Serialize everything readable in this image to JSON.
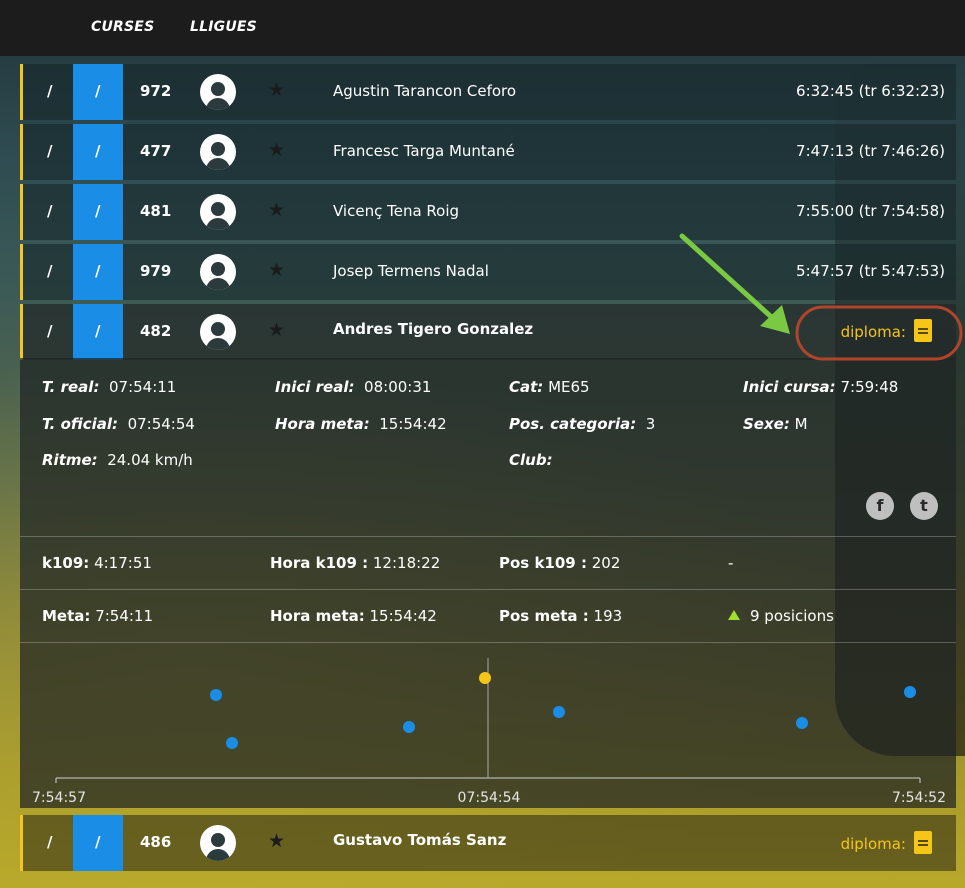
{
  "nav": {
    "curses": "CURSES",
    "lligues": "LLIGUES"
  },
  "rows": [
    {
      "c1": "/",
      "c2": "/",
      "dorsal": "972",
      "name": "Agustin Tarancon Ceforo",
      "time": "6:32:45 (tr 6:32:23)"
    },
    {
      "c1": "/",
      "c2": "/",
      "dorsal": "477",
      "name": "Francesc Targa Muntané",
      "time": "7:47:13 (tr 7:46:26)"
    },
    {
      "c1": "/",
      "c2": "/",
      "dorsal": "481",
      "name": "Vicenç Tena Roig",
      "time": "7:55:00 (tr 7:54:58)"
    },
    {
      "c1": "/",
      "c2": "/",
      "dorsal": "979",
      "name": "Josep Termens Nadal",
      "time": "5:47:57 (tr 5:47:53)"
    }
  ],
  "selected": {
    "c1": "/",
    "c2": "/",
    "dorsal": "482",
    "name": "Andres Tigero Gonzalez",
    "diploma": "diploma:"
  },
  "details": {
    "t_real_k": "T. real:",
    "t_real_v": "07:54:11",
    "inici_real_k": "Inici real:",
    "inici_real_v": "08:00:31",
    "cat_k": "Cat:",
    "cat_v": "ME65",
    "inici_cursa_k": "Inici cursa:",
    "inici_cursa_v": "7:59:48",
    "t_oficial_k": "T. oficial:",
    "t_oficial_v": "07:54:54",
    "hora_meta_k": "Hora meta:",
    "hora_meta_v": "15:54:42",
    "pos_cat_k": "Pos. categoria:",
    "pos_cat_v": "3",
    "sexe_k": "Sexe:",
    "sexe_v": "M",
    "ritme_k": "Ritme:",
    "ritme_v": "24.04 km/h",
    "club_k": "Club:",
    "club_v": ""
  },
  "splits": [
    {
      "a_k": "k109:",
      "a_v": "4:17:51",
      "b_k": "Hora k109 :",
      "b_v": "12:18:22",
      "c_k": "Pos k109 :",
      "c_v": "202",
      "d": "-"
    },
    {
      "a_k": "Meta:",
      "a_v": "7:54:11",
      "b_k": "Hora meta:",
      "b_v": "15:54:42",
      "c_k": "Pos meta :",
      "c_v": "193",
      "d": "9 posicions"
    }
  ],
  "chart_data": {
    "type": "scatter",
    "x_ticks": [
      "7:54:57",
      "07:54:54",
      "7:54:52"
    ],
    "colors": {
      "highlight": "#f5c518",
      "others": "#1a8ee6"
    }
  },
  "next": {
    "c1": "/",
    "c2": "/",
    "dorsal": "486",
    "name": "Gustavo Tomás Sanz",
    "diploma": "diploma:"
  }
}
